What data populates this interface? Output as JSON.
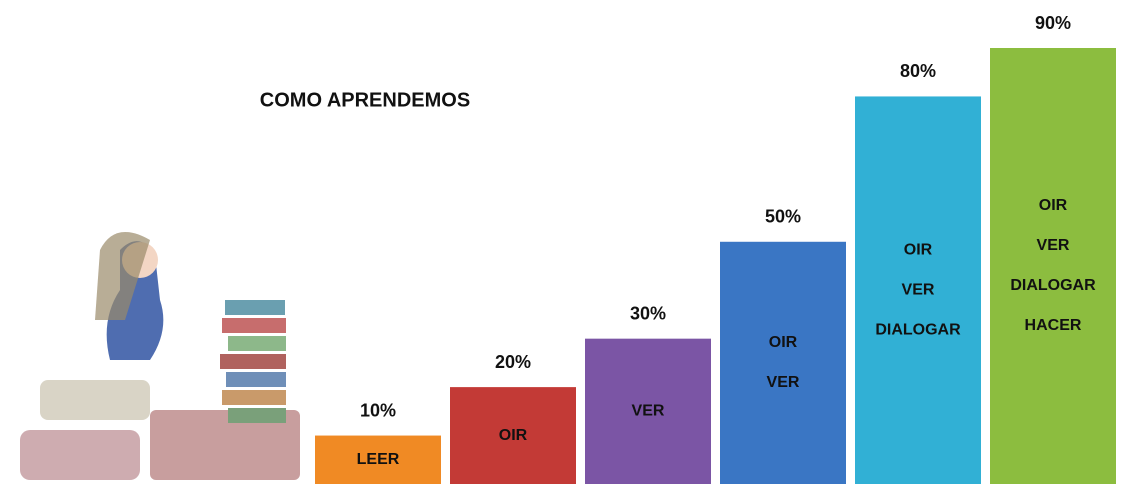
{
  "chart_data": {
    "type": "bar",
    "title": "COMO APRENDEMOS",
    "values": [
      10,
      20,
      30,
      50,
      80,
      90
    ],
    "value_labels": [
      "10%",
      "20%",
      "30%",
      "50%",
      "80%",
      "90%"
    ],
    "bar_labels": [
      [
        "LEER"
      ],
      [
        "OIR"
      ],
      [
        "VER"
      ],
      [
        "OIR",
        "VER"
      ],
      [
        "OIR",
        "VER",
        "DIALOGAR"
      ],
      [
        "OIR",
        "VER",
        "DIALOGAR",
        "HACER"
      ]
    ],
    "colors": [
      "#f08a24",
      "#c33a36",
      "#7b55a5",
      "#3a76c4",
      "#31b0d5",
      "#8cbd3f"
    ]
  }
}
